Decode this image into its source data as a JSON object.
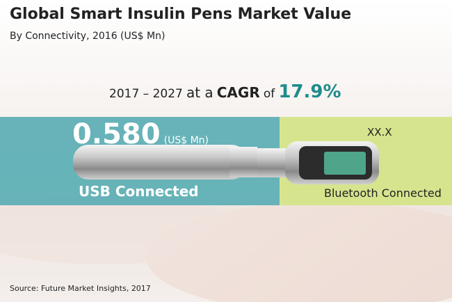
{
  "header": {
    "title": "Global Smart Insulin Pens Market Value",
    "subtitle": "By Connectivity, 2016 (US$ Mn)"
  },
  "cagr": {
    "period": "2017 – 2027",
    "middle": "at a",
    "label": "CAGR",
    "of": "of",
    "value": "17.9%"
  },
  "segments": [
    {
      "value": "0.580",
      "unit": "(US$ Mn)",
      "label": "USB Connected"
    },
    {
      "value": "XX.X",
      "label": "Bluetooth Connected"
    }
  ],
  "source": "Source: Future Market Insights, 2017"
}
